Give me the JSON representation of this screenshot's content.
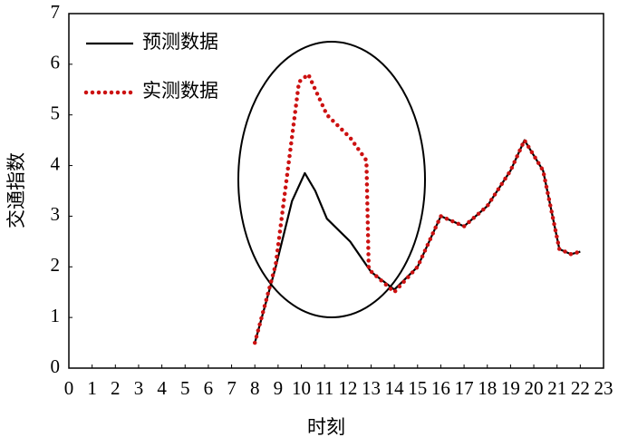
{
  "chart_data": {
    "type": "line",
    "xlabel": "时刻",
    "ylabel": "交通指数",
    "xlim": [
      0,
      23
    ],
    "ylim": [
      0,
      7
    ],
    "xticks": [
      0,
      1,
      2,
      3,
      4,
      5,
      6,
      7,
      8,
      9,
      10,
      11,
      12,
      13,
      14,
      15,
      16,
      17,
      18,
      19,
      20,
      21,
      22,
      23
    ],
    "yticks": [
      0,
      1,
      2,
      3,
      4,
      5,
      6,
      7
    ],
    "legend": "upper left",
    "grid": false,
    "series": [
      {
        "name": "预测数据",
        "color": "#000000",
        "style": "solid",
        "x": [
          8,
          8.9,
          9.6,
          10.15,
          10.6,
          11.1,
          12.1,
          13,
          14,
          15,
          16,
          17,
          18,
          19,
          19.6,
          20.4,
          21.1,
          21.6,
          22
        ],
        "values": [
          0.5,
          2.0,
          3.3,
          3.85,
          3.5,
          2.95,
          2.5,
          1.9,
          1.55,
          2.0,
          3.0,
          2.8,
          3.2,
          3.9,
          4.5,
          3.9,
          2.35,
          2.25,
          2.3
        ]
      },
      {
        "name": "实测数据",
        "color": "#cc1111",
        "style": "dotted",
        "x": [
          8,
          8.9,
          9.9,
          10.3,
          11.1,
          12.1,
          12.8,
          12.9,
          14,
          15,
          16,
          17,
          18,
          19,
          19.6,
          20.4,
          21.1,
          21.6,
          22
        ],
        "values": [
          0.5,
          2.05,
          5.65,
          5.8,
          5.0,
          4.55,
          4.1,
          1.95,
          1.5,
          2.0,
          3.0,
          2.8,
          3.2,
          3.9,
          4.5,
          3.9,
          2.35,
          2.25,
          2.3
        ]
      }
    ]
  }
}
